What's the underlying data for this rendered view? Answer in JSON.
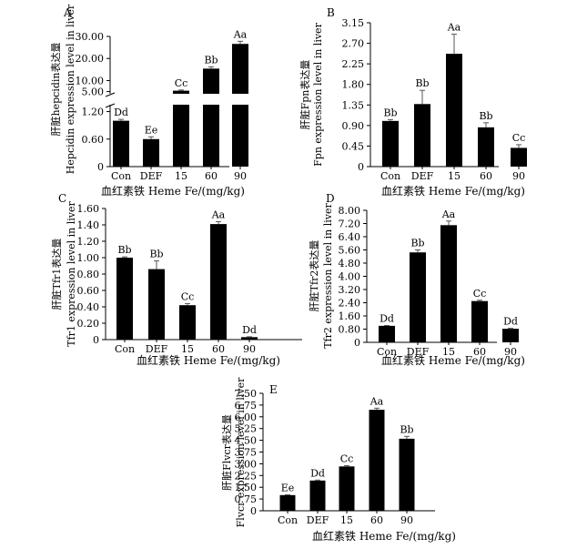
{
  "figure": {
    "panels": [
      "A",
      "B",
      "C",
      "D",
      "E"
    ]
  },
  "chart_data": [
    {
      "panel": "A",
      "type": "bar",
      "categories": [
        "Con",
        "DEF",
        "15",
        "60",
        "90"
      ],
      "values": [
        1.0,
        0.6,
        5.4,
        15.4,
        26.6
      ],
      "errors": [
        0.03,
        0.05,
        0.3,
        0.8,
        1.2
      ],
      "data_labels": [
        "Dd",
        "Ee",
        "Cc",
        "Bb",
        "Aa"
      ],
      "ylabel": [
        "肝脏hepcidin表达量",
        "Hepcidin expression level in liver"
      ],
      "xlabel": "血红素铁 Heme Fe/(mg/kg)",
      "y_ticks_lower": [
        "0",
        "0.60",
        "1.20"
      ],
      "y_ticks_upper": [
        "5.00",
        "10.00",
        "20.00",
        "30.00"
      ],
      "axis_break": true,
      "ylim_lower": [
        0,
        1.35
      ],
      "ylim_upper": [
        4,
        30
      ]
    },
    {
      "panel": "B",
      "type": "bar",
      "categories": [
        "Con",
        "DEF",
        "15",
        "60",
        "90"
      ],
      "values": [
        1.0,
        1.37,
        2.47,
        0.86,
        0.41
      ],
      "errors": [
        0.03,
        0.3,
        0.43,
        0.1,
        0.07
      ],
      "data_labels": [
        "Bb",
        "Bb",
        "Aa",
        "Bb",
        "Cc"
      ],
      "ylabel": [
        "肝脏Fpn表达量",
        "Fpn expression level in liver"
      ],
      "xlabel": "血红素铁 Heme Fe/(mg/kg)",
      "y_ticks": [
        "0",
        "0.45",
        "0.90",
        "1.35",
        "1.80",
        "2.25",
        "2.70",
        "3.15"
      ],
      "ylim": [
        0,
        3.15
      ]
    },
    {
      "panel": "C",
      "type": "bar",
      "categories": [
        "Con",
        "DEF",
        "15",
        "60",
        "90"
      ],
      "values": [
        1.0,
        0.86,
        0.42,
        1.41,
        0.03
      ],
      "errors": [
        0.01,
        0.1,
        0.02,
        0.03,
        0.005
      ],
      "data_labels": [
        "Bb",
        "Bb",
        "Cc",
        "Aa",
        "Dd"
      ],
      "ylabel": [
        "肝脏Tfr1表达量",
        "Tfr1 expression level in liver"
      ],
      "xlabel": "血红素铁 Heme Fe/(mg/kg)",
      "y_ticks": [
        "0",
        "0.20",
        "0.40",
        "0.60",
        "0.80",
        "1.00",
        "1.20",
        "1.40",
        "1.60"
      ],
      "ylim": [
        0,
        1.6
      ]
    },
    {
      "panel": "D",
      "type": "bar",
      "categories": [
        "Con",
        "DEF",
        "15",
        "60",
        "90"
      ],
      "values": [
        1.0,
        5.45,
        7.1,
        2.5,
        0.82
      ],
      "errors": [
        0.02,
        0.15,
        0.25,
        0.05,
        0.03
      ],
      "data_labels": [
        "Dd",
        "Bb",
        "Aa",
        "Cc",
        "Dd"
      ],
      "ylabel": [
        "肝脏Tfr2表达量",
        "Tfr2 expression level in liver"
      ],
      "xlabel": "血红素铁 Heme Fe/(mg/kg)",
      "y_ticks": [
        "0",
        "0.80",
        "1.60",
        "2.40",
        "3.20",
        "4.00",
        "4.80",
        "5.60",
        "6.40",
        "7.20",
        "8.00"
      ],
      "ylim": [
        0,
        8.0
      ]
    },
    {
      "panel": "E",
      "type": "bar",
      "categories": [
        "Con",
        "DEF",
        "15",
        "60",
        "90"
      ],
      "values": [
        1.0,
        1.93,
        2.83,
        6.45,
        4.6
      ],
      "errors": [
        0.02,
        0.03,
        0.05,
        0.1,
        0.15
      ],
      "data_labels": [
        "Ee",
        "Dd",
        "Cc",
        "Aa",
        "Bb"
      ],
      "ylabel": [
        "肝脏Flvcr表达量",
        "Flvcr expression level in liver"
      ],
      "xlabel": "血红素铁 Heme Fe/(mg/kg)",
      "y_ticks": [
        "0",
        "0.75",
        "1.50",
        "2.25",
        "3.00",
        "3.75",
        "4.50",
        "5.25",
        "6.00",
        "6.75",
        "7.50"
      ],
      "ylim": [
        0,
        7.5
      ]
    }
  ]
}
